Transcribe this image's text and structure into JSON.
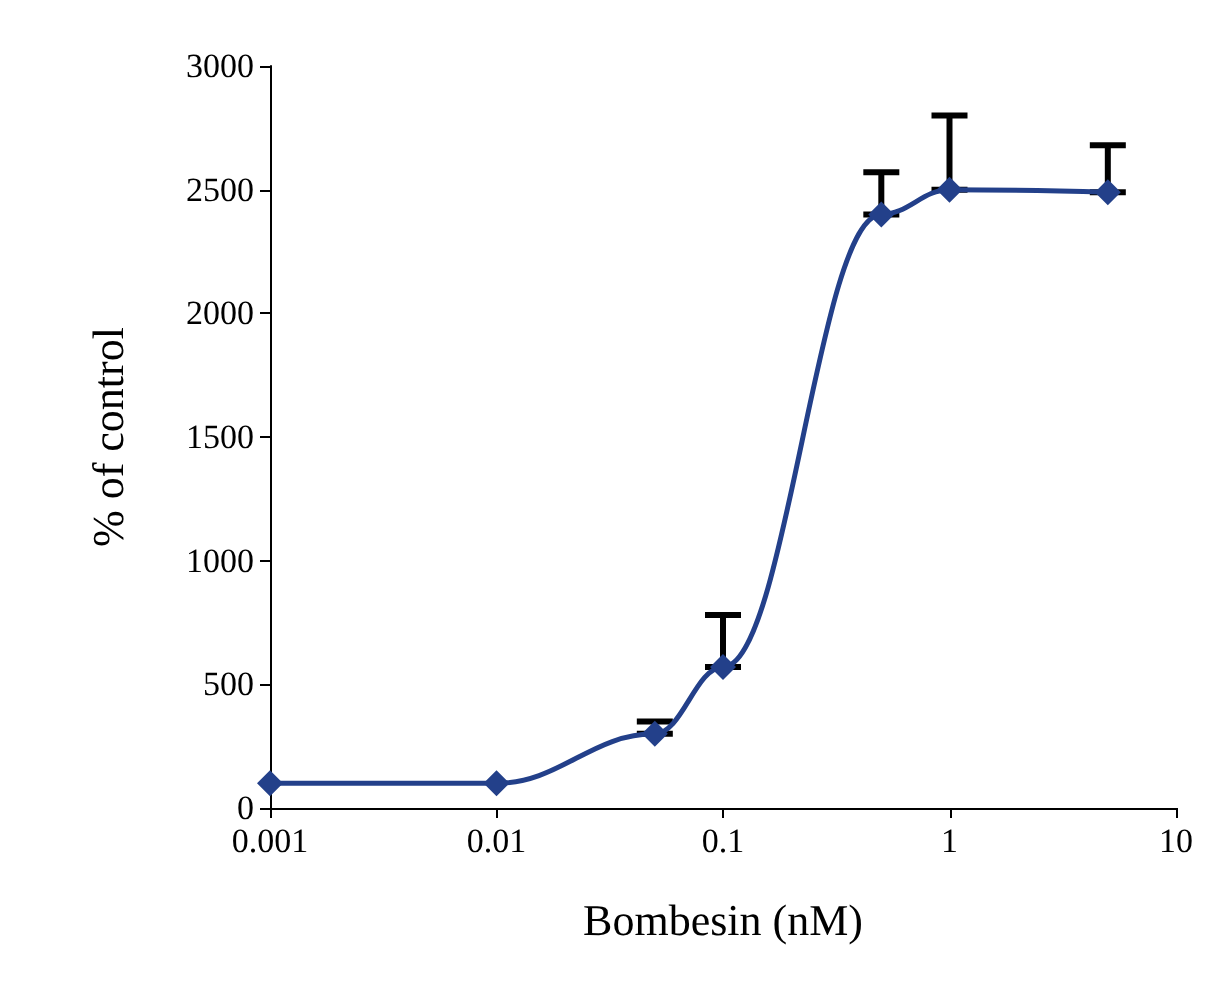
{
  "chart_data": {
    "type": "line",
    "xlabel": "Bombesin (nM)",
    "ylabel": "% of control",
    "x": [
      0.001,
      0.01,
      0.05,
      0.1,
      0.5,
      1,
      5
    ],
    "series": [
      {
        "color": "#23408a",
        "values": [
          100,
          100,
          300,
          570,
          2400,
          2500,
          2490
        ],
        "errors": [
          null,
          null,
          [
            300,
            350
          ],
          [
            570,
            780
          ],
          [
            2400,
            2570
          ],
          [
            2500,
            2800
          ],
          [
            2490,
            2680
          ]
        ]
      }
    ],
    "log": "x",
    "xlim": [
      0.001,
      10
    ],
    "xticks": [
      0.001,
      0.01,
      0.1,
      1,
      10
    ],
    "ylim": [
      0,
      3000
    ],
    "yticks": [
      0,
      500,
      1000,
      1500,
      2000,
      2500,
      3000
    ],
    "grid": false,
    "marker": "diamond",
    "line_style": "solid"
  }
}
